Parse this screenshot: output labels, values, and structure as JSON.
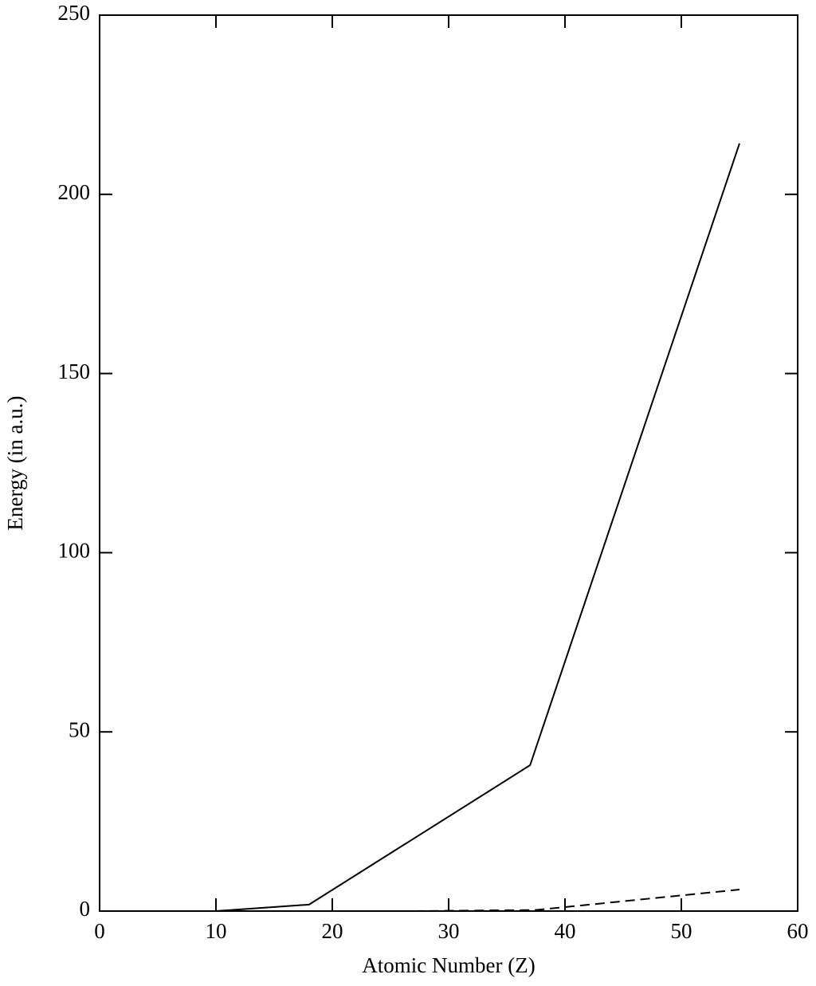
{
  "chart_data": {
    "type": "line",
    "x_label": "Atomic Number (Z)",
    "y_label": "Energy (in a.u.)",
    "series": [
      {
        "color": "#000000",
        "dashed": false,
        "x": [
          10,
          18,
          37,
          55
        ],
        "values": [
          0,
          1.8,
          40.7,
          214.2
        ]
      },
      {
        "color": "#000000",
        "dashed": true,
        "x": [
          27,
          37.5,
          55
        ],
        "values": [
          0,
          0.3,
          6
        ]
      }
    ],
    "xlim": [
      0,
      60
    ],
    "xticks": [
      0,
      10,
      20,
      30,
      40,
      50,
      60
    ],
    "ylim": [
      0,
      250
    ],
    "yticks": [
      0,
      50,
      100,
      150,
      200,
      250
    ],
    "grid": false
  }
}
